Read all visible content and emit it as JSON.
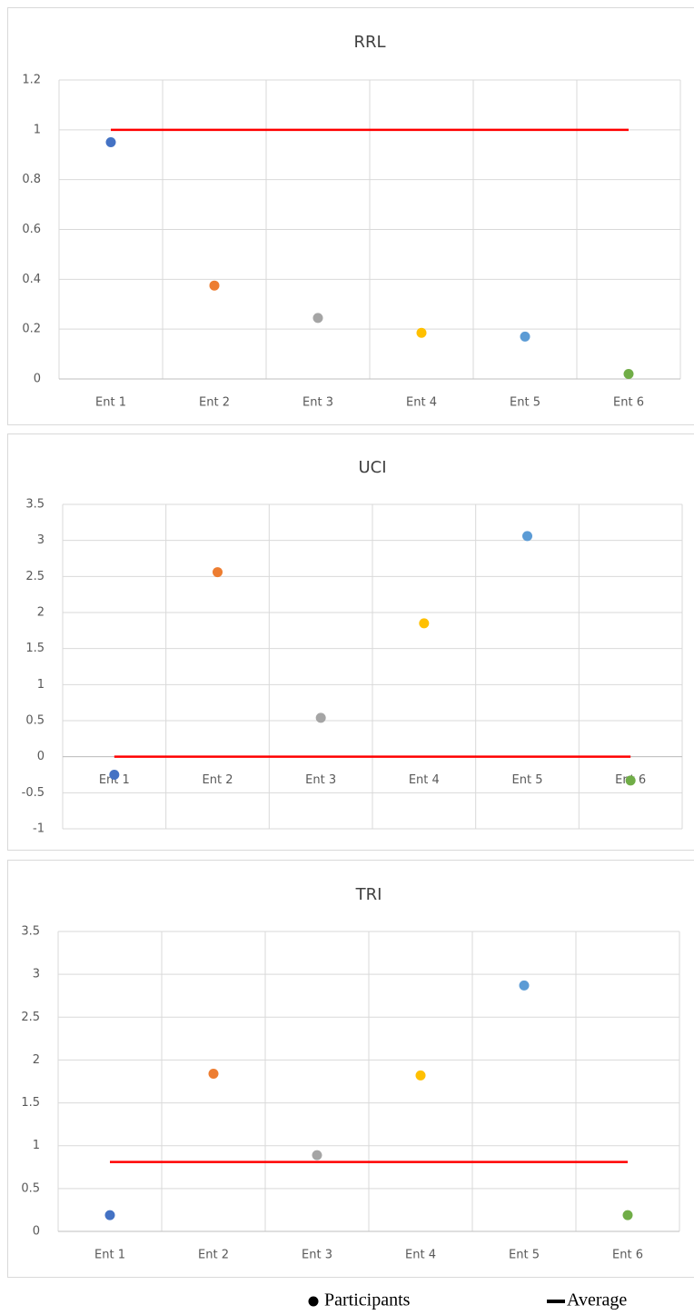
{
  "chart_data": [
    {
      "type": "scatter",
      "title": "RRL",
      "categories": [
        "Ent 1",
        "Ent 2",
        "Ent 3",
        "Ent 4",
        "Ent 5",
        "Ent 6"
      ],
      "series": [
        {
          "type": "scatter",
          "colors": [
            "#4472c4",
            "#ed7d31",
            "#a5a5a5",
            "#ffc000",
            "#5b9bd5",
            "#70ad47"
          ],
          "values": [
            0.95,
            0.375,
            0.245,
            0.185,
            0.17,
            0.02
          ]
        },
        {
          "type": "line",
          "color": "#ff0000",
          "values": [
            1,
            1,
            1,
            1,
            1,
            1
          ]
        }
      ],
      "ylim": [
        0,
        1.2
      ],
      "yticks": [
        0,
        0.2,
        0.4,
        0.6,
        0.8,
        1,
        1.2
      ],
      "grid": true
    },
    {
      "type": "scatter",
      "title": "UCI",
      "categories": [
        "Ent 1",
        "Ent 2",
        "Ent 3",
        "Ent 4",
        "Ent 5",
        "Ent 6"
      ],
      "series": [
        {
          "type": "scatter",
          "colors": [
            "#4472c4",
            "#ed7d31",
            "#a5a5a5",
            "#ffc000",
            "#5b9bd5",
            "#70ad47"
          ],
          "values": [
            -0.25,
            2.56,
            0.54,
            1.85,
            3.06,
            -0.33
          ]
        },
        {
          "type": "line",
          "color": "#ff0000",
          "values": [
            0,
            0,
            0,
            0,
            0,
            0
          ]
        }
      ],
      "ylim": [
        -1,
        3.5
      ],
      "yticks": [
        -1,
        -0.5,
        0,
        0.5,
        1,
        1.5,
        2,
        2.5,
        3,
        3.5
      ],
      "grid": true
    },
    {
      "type": "scatter",
      "title": "TRI",
      "categories": [
        "Ent 1",
        "Ent 2",
        "Ent 3",
        "Ent 4",
        "Ent 5",
        "Ent 6"
      ],
      "series": [
        {
          "type": "scatter",
          "colors": [
            "#4472c4",
            "#ed7d31",
            "#a5a5a5",
            "#ffc000",
            "#5b9bd5",
            "#70ad47"
          ],
          "values": [
            0.19,
            1.84,
            0.89,
            1.82,
            2.87,
            0.19
          ]
        },
        {
          "type": "line",
          "color": "#ff0000",
          "values": [
            0.81,
            0.81,
            0.81,
            0.81,
            0.81,
            0.81
          ]
        }
      ],
      "ylim": [
        0,
        3.5
      ],
      "yticks": [
        0,
        0.5,
        1,
        1.5,
        2,
        2.5,
        3,
        3.5
      ],
      "grid": true
    }
  ],
  "legend": [
    {
      "name": "Participants",
      "shape": "dot",
      "color": "#000000"
    },
    {
      "name": "Average",
      "shape": "dash",
      "color": "#000000"
    }
  ]
}
